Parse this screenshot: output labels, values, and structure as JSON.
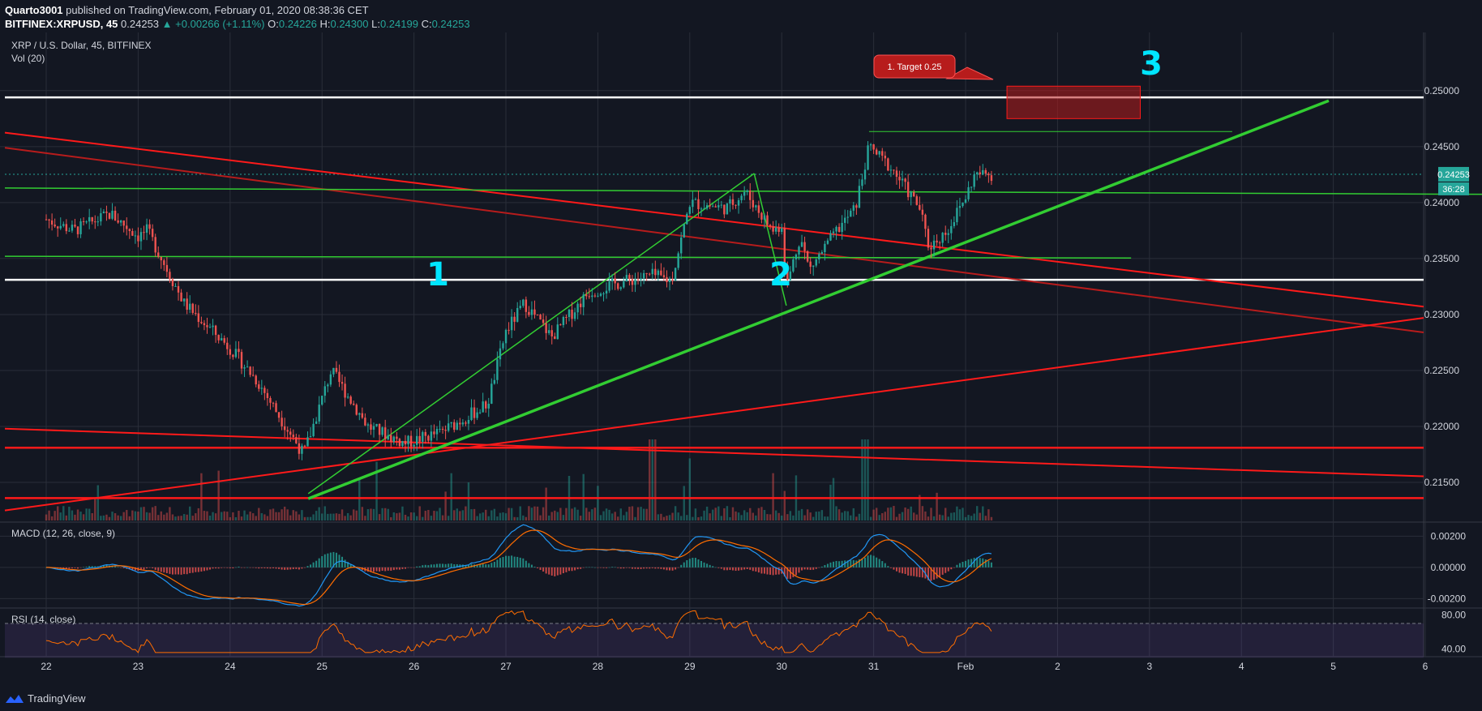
{
  "header": {
    "author": "Quarto3001",
    "published": "published on TradingView.com, February 01, 2020 08:38:36 CET",
    "symbol": "BITFINEX:XRPUSD, 45",
    "last": "0.24253",
    "change": "▲ +0.00266 (+1.11%)",
    "o_label": "O:",
    "o": "0.24226",
    "h_label": "H:",
    "h": "0.24300",
    "l_label": "L:",
    "l": "0.24199",
    "c_label": "C:",
    "c": "0.24253"
  },
  "footer": {
    "brand": "TradingView"
  },
  "colors": {
    "background": "#131722",
    "grid": "#2a2e39",
    "up": "#26a69a",
    "down": "#ef5350",
    "green_line": "#32cd32",
    "red_line": "#ff1a1a",
    "dark_red_line": "#b71c1c",
    "white_line": "#ffffff",
    "cyan_label": "#00e5ff"
  },
  "chart_data": {
    "type": "candlestick",
    "title": "XRP / U.S. Dollar, 45, BITFINEX",
    "volume_label": "Vol (20)",
    "x_ticks": [
      "22",
      "23",
      "24",
      "25",
      "26",
      "27",
      "28",
      "29",
      "30",
      "31",
      "Feb",
      "2",
      "3",
      "4",
      "5",
      "6"
    ],
    "x_range": [
      "Jan 22",
      "Feb 6"
    ],
    "y_ticks": [
      "0.25000",
      "0.24500",
      "0.24000",
      "0.23500",
      "0.23000",
      "0.22500",
      "0.22000",
      "0.21500"
    ],
    "ylim": [
      0.2116,
      0.2552
    ],
    "last_price": "0.24253",
    "countdown": "36:28",
    "price_path": [
      {
        "day": 0.0,
        "price": 0.2385
      },
      {
        "day": 0.3,
        "price": 0.2375
      },
      {
        "day": 0.7,
        "price": 0.239
      },
      {
        "day": 1.0,
        "price": 0.237
      },
      {
        "day": 1.1,
        "price": 0.2375
      },
      {
        "day": 1.5,
        "price": 0.231
      },
      {
        "day": 2.0,
        "price": 0.227
      },
      {
        "day": 2.3,
        "price": 0.224
      },
      {
        "day": 2.8,
        "price": 0.2175
      },
      {
        "day": 3.1,
        "price": 0.225
      },
      {
        "day": 3.5,
        "price": 0.22
      },
      {
        "day": 3.9,
        "price": 0.2185
      },
      {
        "day": 4.3,
        "price": 0.2195
      },
      {
        "day": 4.8,
        "price": 0.222
      },
      {
        "day": 5.0,
        "price": 0.2285
      },
      {
        "day": 5.2,
        "price": 0.231
      },
      {
        "day": 5.5,
        "price": 0.228
      },
      {
        "day": 5.9,
        "price": 0.232
      },
      {
        "day": 6.3,
        "price": 0.233
      },
      {
        "day": 6.6,
        "price": 0.2335
      },
      {
        "day": 6.8,
        "price": 0.233
      },
      {
        "day": 7.0,
        "price": 0.24
      },
      {
        "day": 7.4,
        "price": 0.2395
      },
      {
        "day": 7.6,
        "price": 0.241
      },
      {
        "day": 7.9,
        "price": 0.2375
      },
      {
        "day": 8.2,
        "price": 0.237
      },
      {
        "day": 8.0,
        "price": 0.238
      },
      {
        "day": 8.05,
        "price": 0.2325
      },
      {
        "day": 8.3,
        "price": 0.234
      },
      {
        "day": 8.6,
        "price": 0.2375
      },
      {
        "day": 8.8,
        "price": 0.2395
      },
      {
        "day": 8.95,
        "price": 0.245
      },
      {
        "day": 9.2,
        "price": 0.243
      },
      {
        "day": 9.5,
        "price": 0.2395
      },
      {
        "day": 9.6,
        "price": 0.236
      },
      {
        "day": 9.8,
        "price": 0.2375
      },
      {
        "day": 10.0,
        "price": 0.2405
      },
      {
        "day": 10.1,
        "price": 0.2425
      },
      {
        "day": 10.3,
        "price": 0.2425
      }
    ],
    "drawings": {
      "horizontal_white": [
        0.2494,
        0.2331
      ],
      "target_box": {
        "from": 10.45,
        "to": 11.9,
        "low": 0.2475,
        "high": 0.2504
      },
      "target_label": "1. Target 0.25",
      "wave_labels": [
        "1",
        "2",
        "3"
      ]
    },
    "macd": {
      "label": "MACD (12, 26, close, 9)",
      "ticks": [
        "0.00200",
        "0.00000",
        "-0.00200"
      ],
      "ylim": [
        -0.0025,
        0.0028
      ]
    },
    "rsi": {
      "label": "RSI (14, close)",
      "ticks": [
        "80.00",
        "40.00"
      ],
      "ylim": [
        35,
        86
      ]
    }
  }
}
